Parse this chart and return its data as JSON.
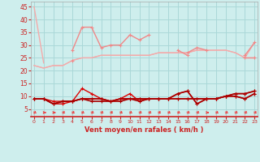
{
  "x": [
    0,
    1,
    2,
    3,
    4,
    5,
    6,
    7,
    8,
    9,
    10,
    11,
    12,
    13,
    14,
    15,
    16,
    17,
    18,
    19,
    20,
    21,
    22,
    23
  ],
  "xlabel": "Vent moyen/en rafales ( km/h )",
  "background_color": "#ceeeed",
  "grid_color": "#aad8d8",
  "ylim": [
    2,
    47
  ],
  "yticks": [
    5,
    10,
    15,
    20,
    25,
    30,
    35,
    40,
    45
  ],
  "trend1": [
    22,
    21,
    22,
    22,
    24,
    25,
    25,
    26,
    26,
    26,
    26,
    26,
    26,
    27,
    27,
    27,
    27,
    28,
    28,
    28,
    28,
    27,
    25,
    25
  ],
  "trend2": [
    22,
    21,
    22,
    22,
    24,
    25,
    25,
    26,
    26,
    26,
    26,
    26,
    26,
    27,
    27,
    27,
    27,
    28,
    28,
    28,
    28,
    27,
    25,
    31
  ],
  "drop_line": [
    [
      0,
      1
    ],
    [
      45,
      23
    ]
  ],
  "upper1": [
    null,
    null,
    null,
    null,
    28,
    37,
    37,
    29,
    30,
    30,
    34,
    32,
    34,
    null,
    null,
    28,
    26,
    null,
    null,
    null,
    null,
    null,
    26,
    31
  ],
  "upper2": [
    null,
    null,
    null,
    null,
    24,
    null,
    null,
    null,
    null,
    null,
    null,
    null,
    null,
    null,
    null,
    null,
    27,
    29,
    28,
    null,
    null,
    null,
    25,
    25
  ],
  "red1": [
    9,
    9,
    7,
    7,
    8,
    13,
    11,
    9,
    8,
    9,
    11,
    8,
    9,
    9,
    9,
    11,
    12,
    7,
    9,
    9,
    10,
    10,
    9,
    11
  ],
  "red2": [
    9,
    9,
    8,
    8,
    8,
    9,
    9,
    9,
    8,
    9,
    9,
    9,
    9,
    9,
    9,
    9,
    9,
    9,
    9,
    9,
    10,
    11,
    11,
    12
  ],
  "darkred1": [
    9,
    9,
    7,
    8,
    8,
    9,
    9,
    9,
    8,
    9,
    9,
    9,
    9,
    9,
    9,
    9,
    9,
    9,
    9,
    9,
    10,
    11,
    11,
    12
  ],
  "darkred2": [
    9,
    9,
    7,
    8,
    8,
    9,
    8,
    8,
    8,
    8,
    9,
    8,
    9,
    9,
    9,
    11,
    12,
    7,
    9,
    9,
    10,
    10,
    9,
    11
  ],
  "salmon": "#f08888",
  "light_salmon": "#f4aaaa",
  "red": "#dd0000",
  "dark_red": "#aa0000",
  "arrow_color": "#ee4444",
  "xlabel_color": "#cc2222"
}
